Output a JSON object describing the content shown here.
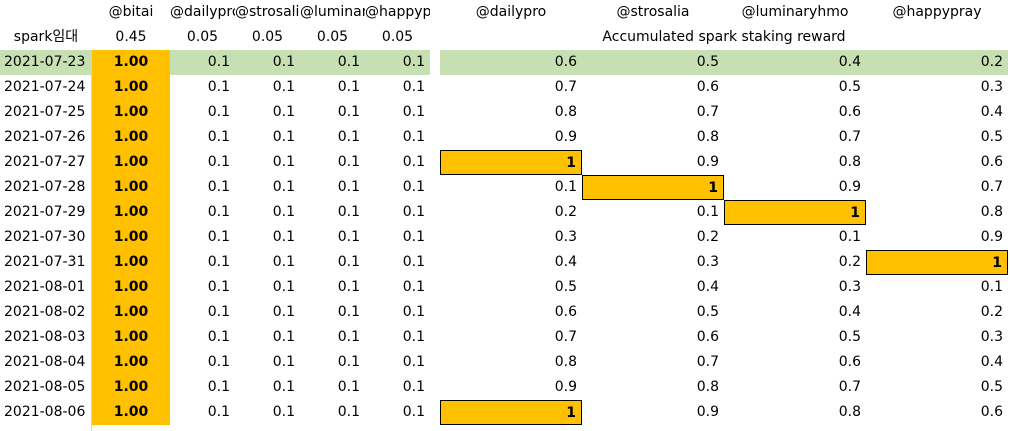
{
  "columns": [
    "@bitai",
    "@dailypro",
    "@strosalia",
    "@luminaryhmo",
    "@happypray",
    "@dailypro",
    "@strosalia",
    "@luminaryhmo",
    "@happypray"
  ],
  "subheader": {
    "label": "spark임대",
    "rates": [
      "0.45",
      "0.05",
      "0.05",
      "0.05",
      "0.05"
    ],
    "caption": "Accumulated spark staking reward"
  },
  "rows": [
    {
      "date": "2021-07-23",
      "cells": [
        "1.00",
        "0.1",
        "0.1",
        "0.1",
        "0.1",
        "0.6",
        "0.5",
        "0.4",
        "0.2"
      ]
    },
    {
      "date": "2021-07-24",
      "cells": [
        "1.00",
        "0.1",
        "0.1",
        "0.1",
        "0.1",
        "0.7",
        "0.6",
        "0.5",
        "0.3"
      ]
    },
    {
      "date": "2021-07-25",
      "cells": [
        "1.00",
        "0.1",
        "0.1",
        "0.1",
        "0.1",
        "0.8",
        "0.7",
        "0.6",
        "0.4"
      ]
    },
    {
      "date": "2021-07-26",
      "cells": [
        "1.00",
        "0.1",
        "0.1",
        "0.1",
        "0.1",
        "0.9",
        "0.8",
        "0.7",
        "0.5"
      ]
    },
    {
      "date": "2021-07-27",
      "cells": [
        "1.00",
        "0.1",
        "0.1",
        "0.1",
        "0.1",
        "1",
        "0.9",
        "0.8",
        "0.6"
      ]
    },
    {
      "date": "2021-07-28",
      "cells": [
        "1.00",
        "0.1",
        "0.1",
        "0.1",
        "0.1",
        "0.1",
        "1",
        "0.9",
        "0.7"
      ]
    },
    {
      "date": "2021-07-29",
      "cells": [
        "1.00",
        "0.1",
        "0.1",
        "0.1",
        "0.1",
        "0.2",
        "0.1",
        "1",
        "0.8"
      ]
    },
    {
      "date": "2021-07-30",
      "cells": [
        "1.00",
        "0.1",
        "0.1",
        "0.1",
        "0.1",
        "0.3",
        "0.2",
        "0.1",
        "0.9"
      ]
    },
    {
      "date": "2021-07-31",
      "cells": [
        "1.00",
        "0.1",
        "0.1",
        "0.1",
        "0.1",
        "0.4",
        "0.3",
        "0.2",
        "1"
      ]
    },
    {
      "date": "2021-08-01",
      "cells": [
        "1.00",
        "0.1",
        "0.1",
        "0.1",
        "0.1",
        "0.5",
        "0.4",
        "0.3",
        "0.1"
      ]
    },
    {
      "date": "2021-08-02",
      "cells": [
        "1.00",
        "0.1",
        "0.1",
        "0.1",
        "0.1",
        "0.6",
        "0.5",
        "0.4",
        "0.2"
      ]
    },
    {
      "date": "2021-08-03",
      "cells": [
        "1.00",
        "0.1",
        "0.1",
        "0.1",
        "0.1",
        "0.7",
        "0.6",
        "0.5",
        "0.3"
      ]
    },
    {
      "date": "2021-08-04",
      "cells": [
        "1.00",
        "0.1",
        "0.1",
        "0.1",
        "0.1",
        "0.8",
        "0.7",
        "0.6",
        "0.4"
      ]
    },
    {
      "date": "2021-08-05",
      "cells": [
        "1.00",
        "0.1",
        "0.1",
        "0.1",
        "0.1",
        "0.9",
        "0.8",
        "0.7",
        "0.5"
      ]
    },
    {
      "date": "2021-08-06",
      "cells": [
        "1.00",
        "0.1",
        "0.1",
        "0.1",
        "0.1",
        "1",
        "0.9",
        "0.8",
        "0.6"
      ]
    }
  ]
}
